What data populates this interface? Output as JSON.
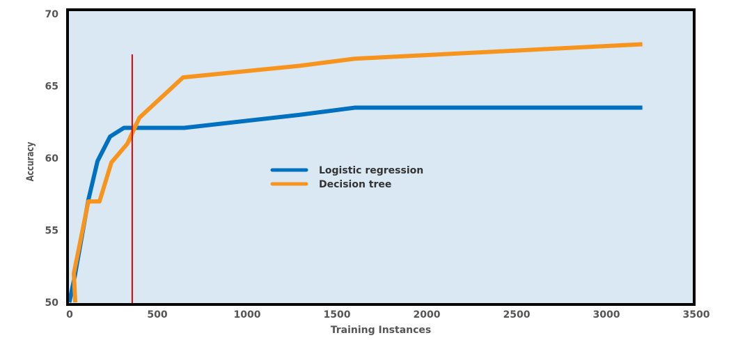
{
  "chart_data": {
    "type": "line",
    "title": "",
    "xlabel": "Training Instances",
    "ylabel": "Accuracy",
    "xlim": [
      0,
      3500
    ],
    "ylim": [
      50,
      70
    ],
    "xticks": [
      "0",
      "500",
      "1000",
      "1500",
      "2000",
      "2500",
      "3000",
      "3500"
    ],
    "yticks": [
      "50",
      "55",
      "60",
      "65",
      "70"
    ],
    "grid": false,
    "legend_position": "center",
    "background_color": "#d9e8f3",
    "series": [
      {
        "name": "Logistic regression",
        "color": "#0070c0",
        "x": [
          10,
          40,
          116,
          167,
          237,
          314,
          650,
          1290,
          1600,
          3200
        ],
        "y": [
          50,
          51.8,
          57.1,
          59.8,
          61.5,
          62.1,
          62.1,
          63.0,
          63.5,
          63.5
        ]
      },
      {
        "name": "Decision tree",
        "color": "#f7941d",
        "x": [
          43,
          35,
          116,
          178,
          244,
          333,
          400,
          643,
          1290,
          1600,
          3200
        ],
        "y": [
          50,
          52.0,
          57.0,
          57.0,
          59.7,
          61.0,
          62.8,
          65.6,
          66.4,
          66.9,
          67.9
        ]
      }
    ],
    "annotations": [
      {
        "type": "vertical-line",
        "color": "#e00000",
        "x": 360,
        "y_range": [
          50,
          67.2
        ]
      }
    ]
  }
}
